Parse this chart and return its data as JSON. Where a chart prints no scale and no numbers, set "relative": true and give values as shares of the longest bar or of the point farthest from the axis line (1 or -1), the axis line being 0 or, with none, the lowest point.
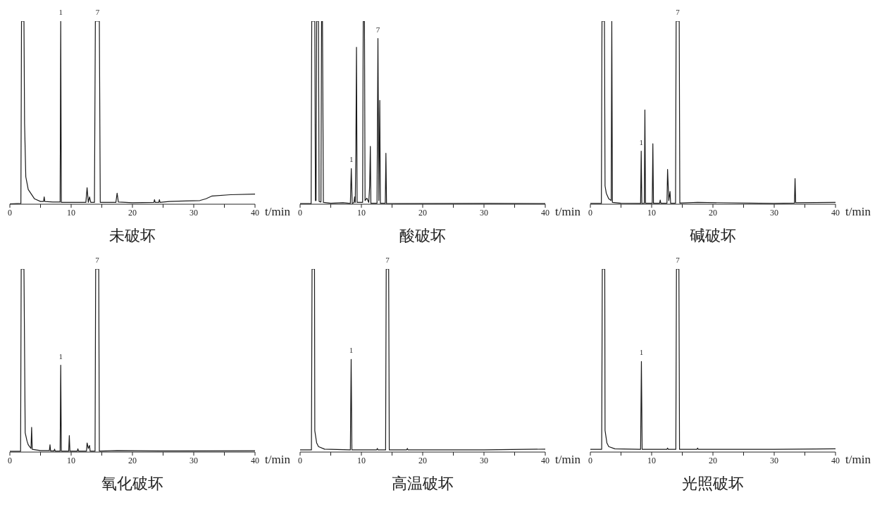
{
  "chart_data": [
    {
      "type": "line",
      "title": "未破坏",
      "xlabel": "t/min",
      "relative": true,
      "color": "#1a1a1a",
      "marker": "none",
      "xlim": [
        0,
        40
      ],
      "xticks": [
        0,
        {
          "value": 5,
          "label": null
        },
        10,
        {
          "value": 15,
          "label": null
        },
        20,
        {
          "value": 25,
          "label": null
        },
        30,
        {
          "value": 35,
          "label": null
        },
        40
      ],
      "x": [
        0,
        1.8,
        1.9,
        2.0,
        2.3,
        2.4,
        2.6,
        3,
        4,
        5,
        5.5,
        5.6,
        5.7,
        7,
        8.2,
        8.3,
        8.4,
        10,
        12.4,
        12.6,
        12.8,
        13.0,
        13.2,
        13.8,
        13.95,
        14.6,
        14.75,
        16,
        17.3,
        17.5,
        17.7,
        20,
        23.5,
        23.6,
        23.7,
        24.3,
        24.4,
        24.5,
        26,
        31,
        32,
        33,
        36,
        40
      ],
      "values": [
        0.002,
        0.004,
        1,
        1,
        1,
        0.44,
        0.15,
        0.08,
        0.03,
        0.015,
        0.015,
        0.04,
        0.015,
        0.012,
        0.012,
        1,
        0.01,
        0.01,
        0.01,
        0.09,
        0.01,
        0.04,
        0.01,
        0.01,
        1,
        1,
        0.01,
        0.01,
        0.01,
        0.06,
        0.012,
        0.008,
        0.01,
        0.025,
        0.01,
        0.01,
        0.025,
        0.01,
        0.015,
        0.02,
        0.03,
        0.045,
        0.052,
        0.055
      ],
      "annotations": [
        {
          "text": "1",
          "x": 8.3,
          "y": 1
        },
        {
          "text": "7",
          "x": 14.3,
          "y": 1
        }
      ]
    },
    {
      "type": "line",
      "title": "酸破坏",
      "xlabel": "t/min",
      "relative": true,
      "color": "#1a1a1a",
      "marker": "none",
      "xlim": [
        0,
        40
      ],
      "xticks": [
        0,
        {
          "value": 5,
          "label": null
        },
        10,
        {
          "value": 15,
          "label": null
        },
        20,
        {
          "value": 25,
          "label": null
        },
        30,
        {
          "value": 35,
          "label": null
        },
        40
      ],
      "x": [
        0,
        1.8,
        1.9,
        2.0,
        2.4,
        2.5,
        2.6,
        2.7,
        2.8,
        3.0,
        3.1,
        3.4,
        3.5,
        3.65,
        3.8,
        5,
        7,
        8.2,
        8.35,
        8.5,
        8.8,
        8.9,
        9.0,
        9.1,
        9.2,
        9.3,
        10.2,
        10.3,
        10.5,
        10.6,
        10.9,
        11.2,
        11.35,
        11.46,
        11.55,
        12.55,
        12.7,
        12.85,
        13.0,
        13.1,
        13.9,
        14.0,
        14.1,
        16,
        31,
        40
      ],
      "values": [
        0.003,
        0.003,
        1,
        1,
        1,
        0.02,
        0.02,
        1,
        1,
        1,
        0.015,
        0.012,
        1,
        1,
        0.01,
        0.005,
        0.008,
        0.004,
        0.195,
        0.004,
        0.01,
        0.04,
        0.01,
        0.3,
        0.857,
        0.01,
        0.01,
        1,
        1,
        0.02,
        0.033,
        0.01,
        0.1,
        0.316,
        0.005,
        0.005,
        0.905,
        0.02,
        0.567,
        0.005,
        0.005,
        0.278,
        0.004,
        0.003,
        0.004,
        0.003
      ],
      "annotations": [
        {
          "text": "1",
          "x": 8.35,
          "y": 0.195
        },
        {
          "text": "7",
          "x": 12.7,
          "y": 0.905
        }
      ]
    },
    {
      "type": "line",
      "title": "碱破坏",
      "xlabel": "t/min",
      "relative": true,
      "color": "#1a1a1a",
      "marker": "none",
      "xlim": [
        0,
        40
      ],
      "xticks": [
        0,
        {
          "value": 5,
          "label": null
        },
        10,
        {
          "value": 15,
          "label": null
        },
        20,
        {
          "value": 25,
          "label": null
        },
        30,
        {
          "value": 35,
          "label": null
        },
        40
      ],
      "x": [
        0,
        1.8,
        1.9,
        2.0,
        2.3,
        2.4,
        2.6,
        3.0,
        3.4,
        3.5,
        3.6,
        5,
        8.2,
        8.3,
        8.4,
        8.8,
        8.9,
        9.0,
        10.1,
        10.2,
        10.3,
        11.3,
        11.4,
        11.5,
        12.5,
        12.6,
        12.8,
        13.0,
        13.1,
        13.9,
        14.0,
        14.5,
        14.6,
        17.5,
        30,
        33.3,
        33.4,
        33.5,
        40
      ],
      "values": [
        0.004,
        0.004,
        1,
        1,
        1,
        0.1,
        0.06,
        0.03,
        0.02,
        1,
        0.01,
        0.005,
        0.004,
        0.29,
        0.004,
        0.005,
        0.515,
        0.005,
        0.005,
        0.33,
        0.005,
        0.005,
        0.023,
        0.005,
        0.005,
        0.19,
        0.02,
        0.07,
        0.005,
        0.005,
        1,
        1,
        0.006,
        0.01,
        0.004,
        0.006,
        0.14,
        0.008,
        0.01
      ],
      "annotations": [
        {
          "text": "1",
          "x": 8.3,
          "y": 0.29
        },
        {
          "text": "7",
          "x": 14.25,
          "y": 1
        }
      ]
    },
    {
      "type": "line",
      "title": "氧化破坏",
      "xlabel": "t/min",
      "relative": true,
      "color": "#1a1a1a",
      "marker": "none",
      "xlim": [
        0,
        40
      ],
      "xticks": [
        0,
        {
          "value": 5,
          "label": null
        },
        10,
        {
          "value": 15,
          "label": null
        },
        20,
        {
          "value": 25,
          "label": null
        },
        30,
        {
          "value": 35,
          "label": null
        },
        40
      ],
      "x": [
        0,
        1.75,
        1.85,
        2.0,
        2.3,
        2.5,
        2.8,
        3.0,
        3.45,
        3.55,
        3.65,
        5,
        6.45,
        6.55,
        6.65,
        7.2,
        7.3,
        7.4,
        8.2,
        8.3,
        8.4,
        9.6,
        9.7,
        9.8,
        11.0,
        11.1,
        11.2,
        12.5,
        12.6,
        12.8,
        13.0,
        13.1,
        13.9,
        14.0,
        14.5,
        14.6,
        17.5,
        24.5,
        40
      ],
      "values": [
        0.004,
        0.004,
        1,
        1,
        1,
        0.105,
        0.06,
        0.04,
        0.02,
        0.135,
        0.015,
        0.008,
        0.008,
        0.04,
        0.006,
        0.006,
        0.016,
        0.005,
        0.005,
        0.475,
        0.005,
        0.005,
        0.09,
        0.005,
        0.005,
        0.018,
        0.005,
        0.005,
        0.05,
        0.02,
        0.036,
        0.005,
        0.005,
        1,
        1,
        0.005,
        0.008,
        0.006,
        0.007
      ],
      "annotations": [
        {
          "text": "1",
          "x": 8.3,
          "y": 0.475
        },
        {
          "text": "7",
          "x": 14.25,
          "y": 1
        }
      ]
    },
    {
      "type": "line",
      "title": "高温破坏",
      "xlabel": "t/min",
      "relative": true,
      "color": "#1a1a1a",
      "marker": "none",
      "xlim": [
        0,
        40
      ],
      "xticks": [
        0,
        {
          "value": 5,
          "label": null
        },
        10,
        {
          "value": 15,
          "label": null
        },
        20,
        {
          "value": 25,
          "label": null
        },
        30,
        {
          "value": 35,
          "label": null
        },
        40
      ],
      "x": [
        0,
        1.85,
        1.95,
        2.1,
        2.35,
        2.4,
        2.7,
        3.0,
        4,
        8.2,
        8.33,
        8.45,
        12.5,
        12.6,
        12.7,
        13.95,
        14.05,
        14.45,
        14.55,
        17.4,
        17.5,
        17.6,
        30,
        40
      ],
      "values": [
        0.012,
        0.012,
        1,
        1,
        1,
        0.116,
        0.05,
        0.03,
        0.016,
        0.012,
        0.506,
        0.012,
        0.012,
        0.02,
        0.012,
        0.012,
        1,
        1,
        0.012,
        0.012,
        0.02,
        0.012,
        0.012,
        0.016
      ],
      "annotations": [
        {
          "text": "1",
          "x": 8.33,
          "y": 0.506
        },
        {
          "text": "7",
          "x": 14.25,
          "y": 1
        }
      ]
    },
    {
      "type": "line",
      "title": "光照破坏",
      "xlabel": "t/min",
      "relative": true,
      "color": "#1a1a1a",
      "marker": "none",
      "xlim": [
        0,
        40
      ],
      "xticks": [
        0,
        {
          "value": 5,
          "label": null
        },
        10,
        {
          "value": 15,
          "label": null
        },
        20,
        {
          "value": 25,
          "label": null
        },
        30,
        {
          "value": 35,
          "label": null
        },
        40
      ],
      "x": [
        0,
        1.85,
        1.95,
        2.1,
        2.35,
        2.4,
        2.7,
        3.0,
        4,
        8.2,
        8.33,
        8.45,
        12.5,
        12.6,
        12.7,
        13.95,
        14.05,
        14.45,
        14.55,
        17.4,
        17.5,
        17.6,
        30,
        40
      ],
      "values": [
        0.015,
        0.015,
        1,
        1,
        1,
        0.118,
        0.05,
        0.03,
        0.018,
        0.015,
        0.495,
        0.015,
        0.015,
        0.022,
        0.015,
        0.015,
        1,
        1,
        0.015,
        0.015,
        0.022,
        0.015,
        0.015,
        0.018
      ],
      "annotations": [
        {
          "text": "1",
          "x": 8.33,
          "y": 0.495
        },
        {
          "text": "7",
          "x": 14.25,
          "y": 1
        }
      ]
    }
  ]
}
